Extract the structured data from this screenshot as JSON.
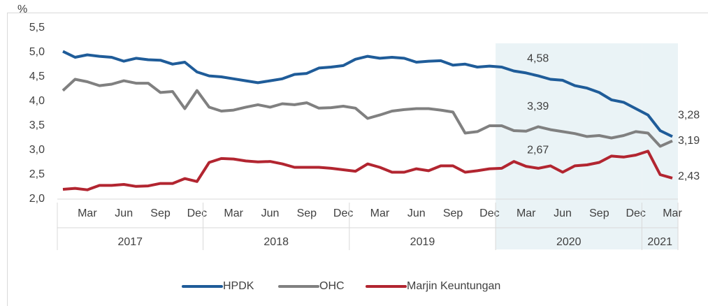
{
  "chart_data": {
    "type": "line",
    "y_unit": "%",
    "categories": [
      null,
      null,
      "Mar",
      null,
      null,
      "Jun",
      null,
      null,
      "Sep",
      null,
      null,
      "Dec",
      null,
      null,
      "Mar",
      null,
      null,
      "Jun",
      null,
      null,
      "Sep",
      null,
      null,
      "Dec",
      null,
      null,
      "Mar",
      null,
      null,
      "Jun",
      null,
      null,
      "Sep",
      null,
      null,
      "Dec",
      null,
      null,
      "Mar",
      null,
      null,
      "Jun",
      null,
      null,
      "Sep",
      null,
      null,
      "Dec",
      null,
      null,
      "Mar"
    ],
    "x_groups": [
      {
        "label": "2017",
        "count": 12
      },
      {
        "label": "2018",
        "count": 12
      },
      {
        "label": "2019",
        "count": 12
      },
      {
        "label": "2020",
        "count": 12,
        "shaded": true
      },
      {
        "label": "2021",
        "count": 3,
        "shaded": true
      }
    ],
    "ylim": [
      2.0,
      5.5
    ],
    "yticks": [
      {
        "value": 2.0,
        "label": "2,0"
      },
      {
        "value": 2.5,
        "label": "2,5"
      },
      {
        "value": 3.0,
        "label": "3,0"
      },
      {
        "value": 3.5,
        "label": "3,5"
      },
      {
        "value": 4.0,
        "label": "4,0"
      },
      {
        "value": 4.5,
        "label": "4,5"
      },
      {
        "value": 5.0,
        "label": "5,0"
      },
      {
        "value": 5.5,
        "label": "5,5"
      }
    ],
    "series": [
      {
        "name": "HPDK",
        "color": "#1f5c99",
        "values": [
          5.02,
          4.9,
          4.95,
          4.92,
          4.9,
          4.82,
          4.88,
          4.85,
          4.84,
          4.76,
          4.8,
          4.6,
          4.52,
          4.5,
          4.46,
          4.42,
          4.38,
          4.42,
          4.46,
          4.55,
          4.57,
          4.68,
          4.7,
          4.73,
          4.86,
          4.92,
          4.88,
          4.9,
          4.88,
          4.8,
          4.82,
          4.83,
          4.74,
          4.76,
          4.7,
          4.72,
          4.7,
          4.62,
          4.58,
          4.52,
          4.45,
          4.43,
          4.32,
          4.27,
          4.18,
          4.03,
          3.98,
          3.85,
          3.72,
          3.4,
          3.28
        ],
        "value_labels": [
          null,
          null,
          null,
          null,
          null,
          null,
          null,
          null,
          null,
          null,
          null,
          null,
          null,
          null,
          null,
          null,
          null,
          null,
          null,
          null,
          null,
          null,
          null,
          null,
          null,
          null,
          null,
          null,
          null,
          null,
          null,
          null,
          null,
          null,
          null,
          null,
          null,
          null,
          "4,58",
          null,
          null,
          null,
          null,
          null,
          null,
          null,
          null,
          null,
          null,
          null,
          "3,28"
        ]
      },
      {
        "name": "OHC",
        "color": "#808080",
        "values": [
          4.22,
          4.45,
          4.4,
          4.32,
          4.35,
          4.42,
          4.37,
          4.37,
          4.18,
          4.2,
          3.85,
          4.22,
          3.88,
          3.8,
          3.82,
          3.88,
          3.93,
          3.88,
          3.95,
          3.93,
          3.97,
          3.86,
          3.87,
          3.9,
          3.86,
          3.65,
          3.72,
          3.8,
          3.83,
          3.85,
          3.85,
          3.82,
          3.78,
          3.35,
          3.38,
          3.5,
          3.5,
          3.4,
          3.39,
          3.48,
          3.42,
          3.38,
          3.34,
          3.28,
          3.3,
          3.25,
          3.3,
          3.38,
          3.35,
          3.08,
          3.19
        ],
        "value_labels": [
          null,
          null,
          null,
          null,
          null,
          null,
          null,
          null,
          null,
          null,
          null,
          null,
          null,
          null,
          null,
          null,
          null,
          null,
          null,
          null,
          null,
          null,
          null,
          null,
          null,
          null,
          null,
          null,
          null,
          null,
          null,
          null,
          null,
          null,
          null,
          null,
          null,
          null,
          "3,39",
          null,
          null,
          null,
          null,
          null,
          null,
          null,
          null,
          null,
          null,
          null,
          "3,19"
        ]
      },
      {
        "name": "Marjin Keuntungan",
        "color": "#b22530",
        "values": [
          2.2,
          2.22,
          2.19,
          2.28,
          2.28,
          2.3,
          2.26,
          2.27,
          2.32,
          2.32,
          2.42,
          2.36,
          2.75,
          2.83,
          2.82,
          2.78,
          2.76,
          2.77,
          2.72,
          2.65,
          2.65,
          2.65,
          2.63,
          2.6,
          2.57,
          2.72,
          2.65,
          2.55,
          2.55,
          2.62,
          2.58,
          2.68,
          2.68,
          2.55,
          2.58,
          2.62,
          2.63,
          2.77,
          2.67,
          2.63,
          2.68,
          2.55,
          2.68,
          2.7,
          2.75,
          2.88,
          2.86,
          2.9,
          2.98,
          2.5,
          2.43
        ],
        "value_labels": [
          null,
          null,
          null,
          null,
          null,
          null,
          null,
          null,
          null,
          null,
          null,
          null,
          null,
          null,
          null,
          null,
          null,
          null,
          null,
          null,
          null,
          null,
          null,
          null,
          null,
          null,
          null,
          null,
          null,
          null,
          null,
          null,
          null,
          null,
          null,
          null,
          null,
          null,
          "2,67",
          null,
          null,
          null,
          null,
          null,
          null,
          null,
          null,
          null,
          null,
          null,
          "2,43"
        ]
      }
    ],
    "legend": "bottom"
  }
}
